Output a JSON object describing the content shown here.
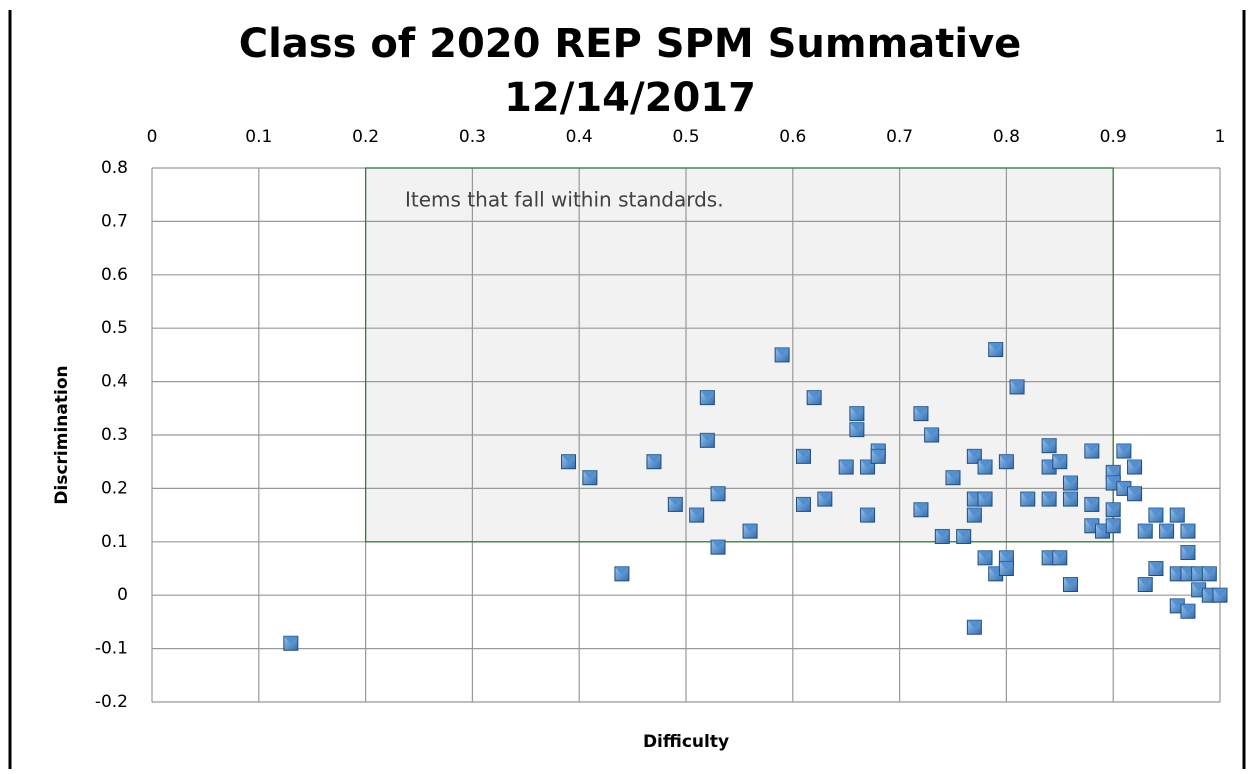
{
  "chart_data": {
    "type": "scatter",
    "title": "Class of 2020 REP SPM Summative",
    "subtitle": "12/14/2017",
    "xlabel": "Difficulty",
    "ylabel": "Discrimination",
    "annotation": "Items that fall within standards.",
    "region": {
      "xlim": [
        0.2,
        0.9
      ],
      "ylim": [
        0.1,
        0.8
      ],
      "color": "#f2f2f2",
      "edge": "#2e7d32"
    },
    "xlim": [
      0,
      1
    ],
    "ylim": [
      -0.2,
      0.8
    ],
    "xticks": [
      0,
      0.1,
      0.2,
      0.3,
      0.4,
      0.5,
      0.6,
      0.7,
      0.8,
      0.9,
      1
    ],
    "yticks": [
      -0.2,
      -0.1,
      0,
      0.1,
      0.2,
      0.3,
      0.4,
      0.5,
      0.6,
      0.7,
      0.8
    ],
    "grid": true,
    "color": "#4a8bd0",
    "x": [
      0.13,
      0.39,
      0.41,
      0.44,
      0.47,
      0.49,
      0.51,
      0.52,
      0.52,
      0.53,
      0.53,
      0.56,
      0.59,
      0.61,
      0.61,
      0.62,
      0.63,
      0.65,
      0.66,
      0.66,
      0.67,
      0.67,
      0.68,
      0.68,
      0.72,
      0.72,
      0.73,
      0.74,
      0.75,
      0.76,
      0.77,
      0.77,
      0.77,
      0.77,
      0.78,
      0.78,
      0.78,
      0.79,
      0.79,
      0.8,
      0.8,
      0.8,
      0.81,
      0.82,
      0.84,
      0.84,
      0.84,
      0.84,
      0.85,
      0.85,
      0.86,
      0.86,
      0.86,
      0.88,
      0.88,
      0.88,
      0.89,
      0.9,
      0.9,
      0.9,
      0.9,
      0.91,
      0.91,
      0.92,
      0.92,
      0.93,
      0.93,
      0.94,
      0.94,
      0.95,
      0.96,
      0.96,
      0.96,
      0.97,
      0.97,
      0.97,
      0.97,
      0.98,
      0.98,
      0.99,
      0.99,
      1
    ],
    "values": [
      -0.09,
      0.25,
      0.22,
      0.04,
      0.25,
      0.17,
      0.15,
      0.37,
      0.29,
      0.19,
      0.09,
      0.12,
      0.45,
      0.26,
      0.17,
      0.37,
      0.18,
      0.24,
      0.34,
      0.31,
      0.24,
      0.15,
      0.27,
      0.26,
      0.34,
      0.16,
      0.3,
      0.11,
      0.22,
      0.11,
      0.26,
      0.18,
      0.15,
      -0.06,
      0.24,
      0.18,
      0.07,
      0.46,
      0.04,
      0.25,
      0.07,
      0.05,
      0.39,
      0.18,
      0.28,
      0.24,
      0.18,
      0.07,
      0.25,
      0.07,
      0.21,
      0.18,
      0.02,
      0.27,
      0.17,
      0.13,
      0.12,
      0.23,
      0.21,
      0.16,
      0.13,
      0.27,
      0.2,
      0.24,
      0.19,
      0.12,
      0.02,
      0.15,
      0.05,
      0.12,
      0.15,
      0.04,
      -0.02,
      0.12,
      0.08,
      0.04,
      -0.03,
      0.04,
      0.01,
      0.04,
      0,
      0
    ]
  }
}
